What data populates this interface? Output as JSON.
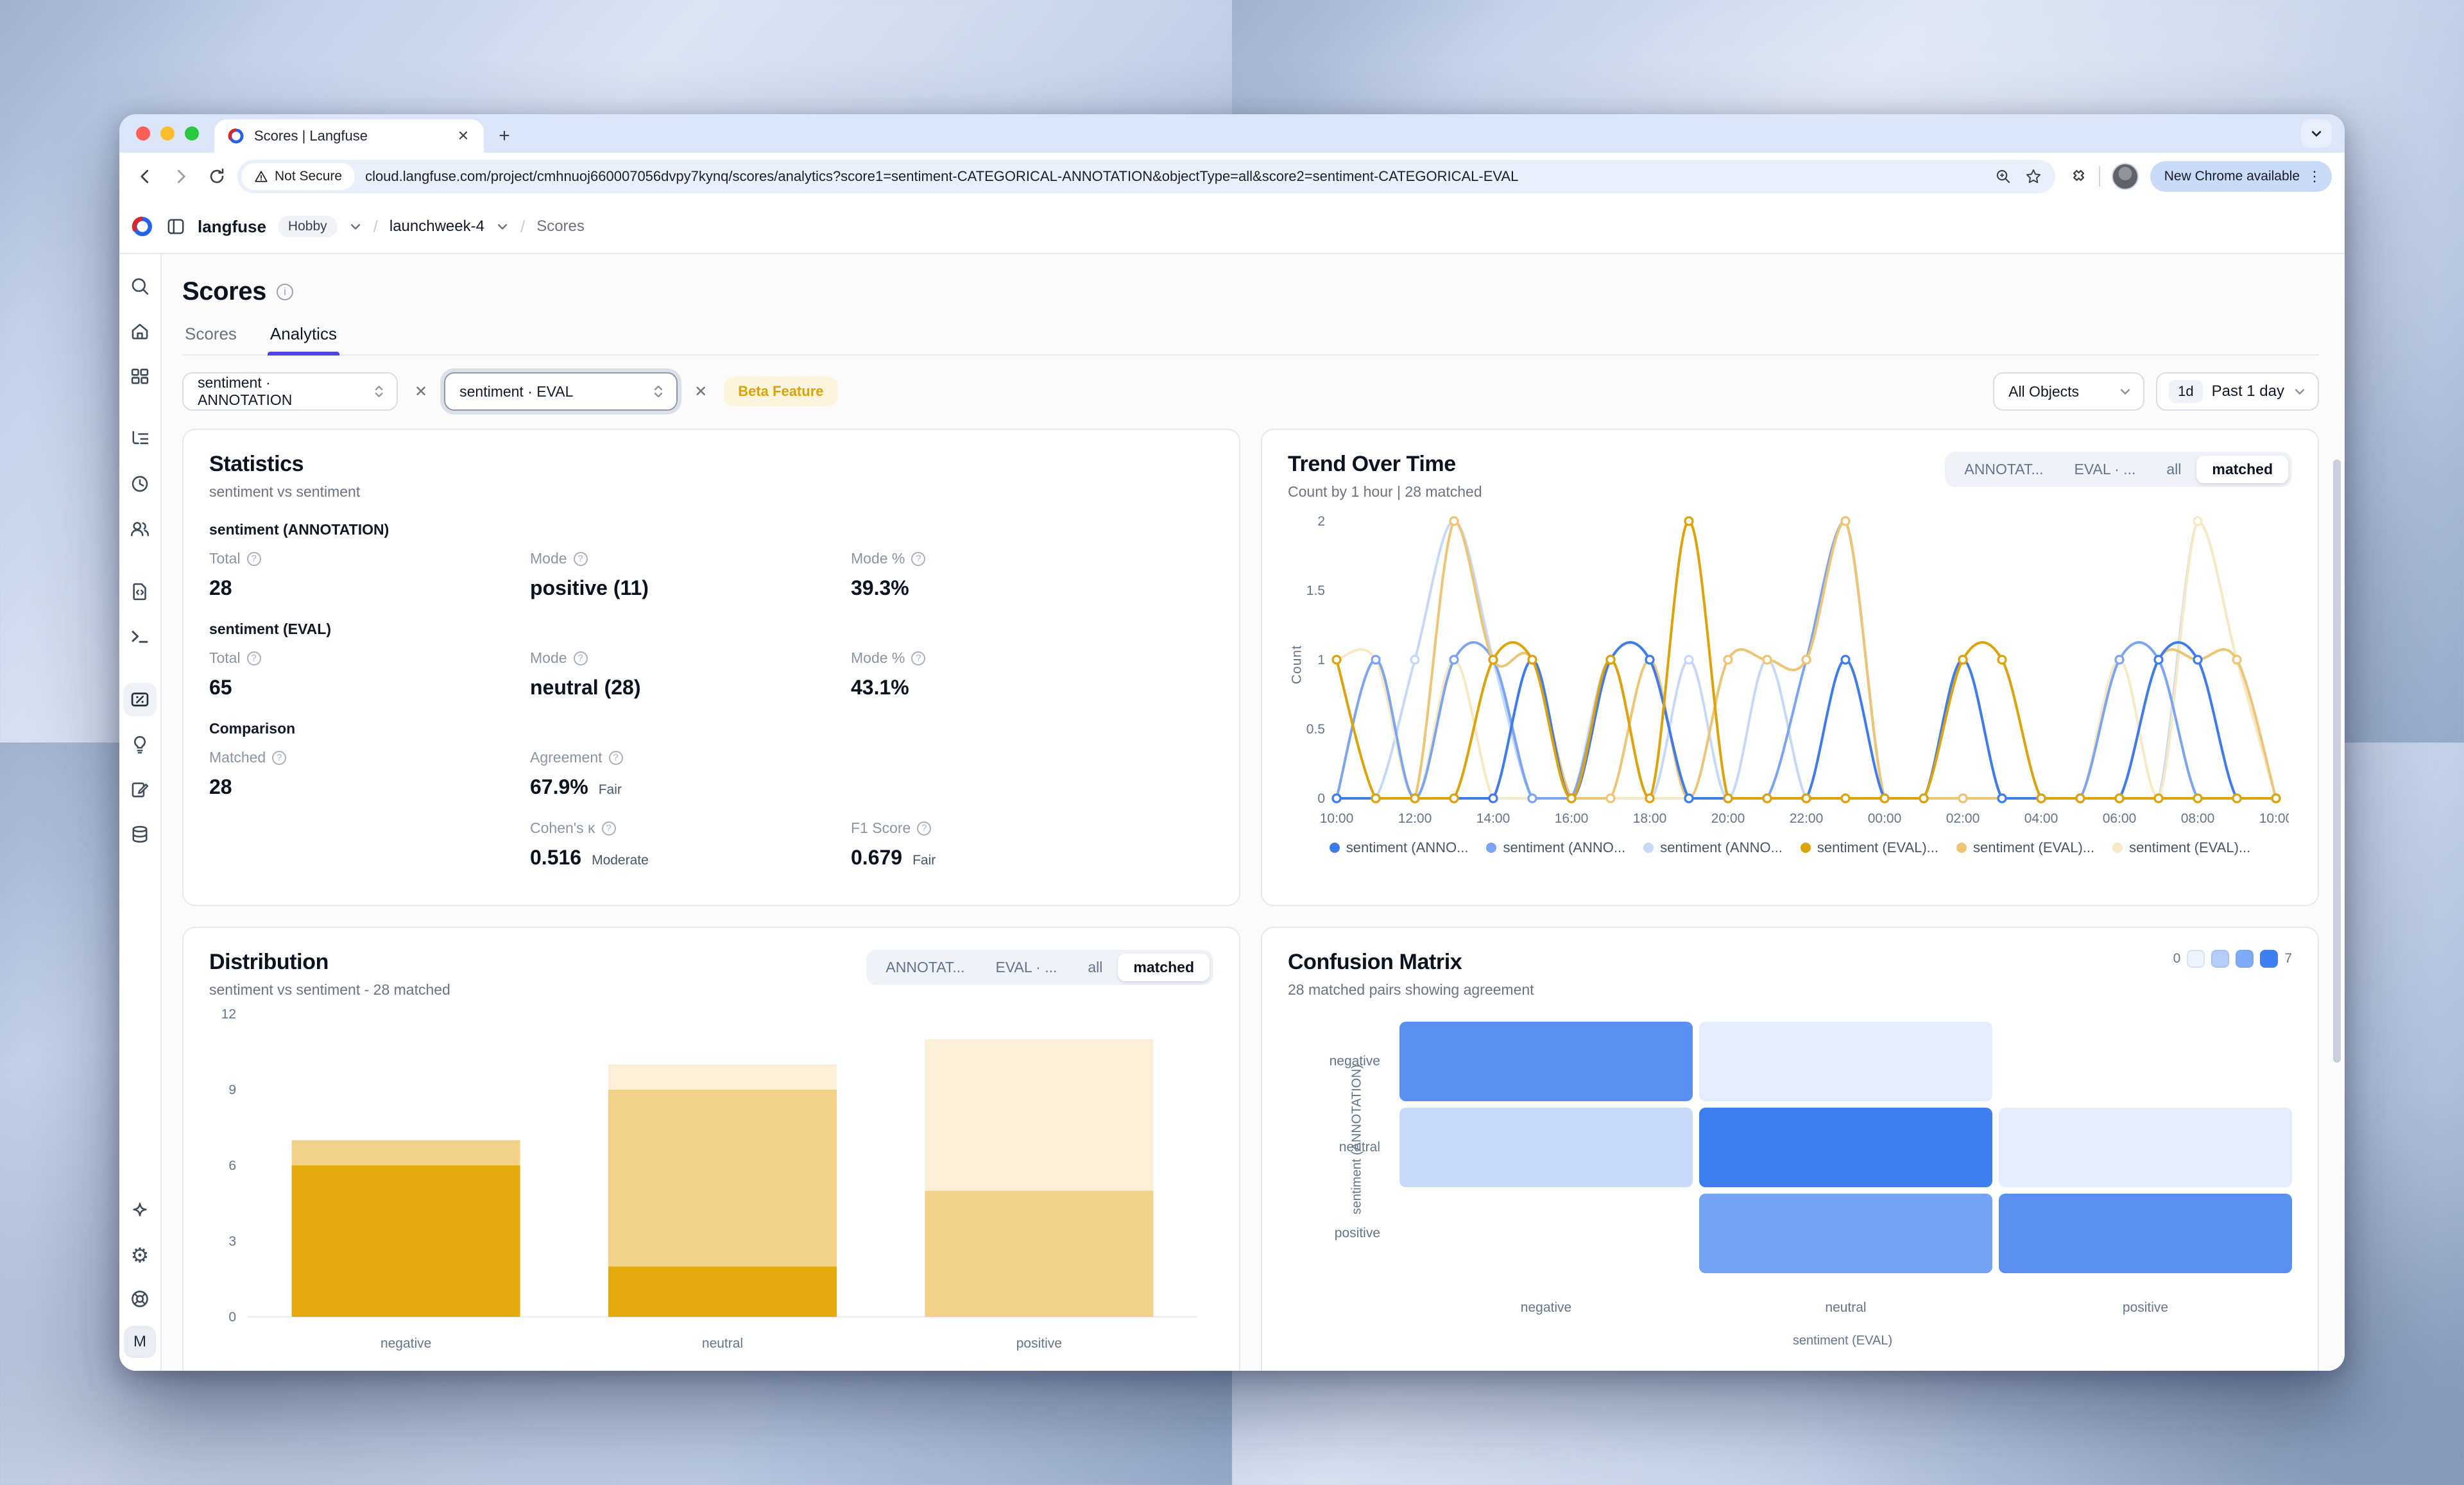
{
  "browser": {
    "tab_title": "Scores | Langfuse",
    "security_label": "Not Secure",
    "url": "cloud.langfuse.com/project/cmhnuoj660007056dvpy7kynq/scores/analytics?score1=sentiment-CATEGORICAL-ANNOTATION&objectType=all&score2=sentiment-CATEGORICAL-EVAL",
    "update_pill": "New Chrome available"
  },
  "app_header": {
    "brand": "langfuse",
    "plan": "Hobby",
    "project": "launchweek-4",
    "section": "Scores"
  },
  "sidebar": {
    "avatar": "M"
  },
  "page": {
    "title": "Scores",
    "tabs": [
      {
        "label": "Scores"
      },
      {
        "label": "Analytics"
      }
    ],
    "active_tab": "Analytics"
  },
  "filters": {
    "score1": "sentiment · ANNOTATION",
    "score2": "sentiment · EVAL",
    "beta": "Beta Feature",
    "objects": "All Objects",
    "range_badge": "1d",
    "range_label": "Past 1 day"
  },
  "statistics": {
    "title": "Statistics",
    "subtitle": "sentiment vs sentiment",
    "annotation": {
      "section": "sentiment (ANNOTATION)",
      "total_label": "Total",
      "total": "28",
      "mode_label": "Mode",
      "mode": "positive (11)",
      "mode_pct_label": "Mode %",
      "mode_pct": "39.3%"
    },
    "eval": {
      "section": "sentiment (EVAL)",
      "total_label": "Total",
      "total": "65",
      "mode_label": "Mode",
      "mode": "neutral (28)",
      "mode_pct_label": "Mode %",
      "mode_pct": "43.1%"
    },
    "comparison": {
      "section": "Comparison",
      "matched_label": "Matched",
      "matched": "28",
      "agreement_label": "Agreement",
      "agreement": "67.9%",
      "agreement_q": "Fair",
      "kappa_label": "Cohen's κ",
      "kappa": "0.516",
      "kappa_q": "Moderate",
      "f1_label": "F1 Score",
      "f1": "0.679",
      "f1_q": "Fair"
    }
  },
  "trend": {
    "title": "Trend Over Time",
    "subtitle": "Count by 1 hour | 28 matched",
    "tabs": [
      "ANNOTAT...",
      "EVAL · ...",
      "all",
      "matched"
    ],
    "active_tab": "matched"
  },
  "distribution": {
    "title": "Distribution",
    "subtitle": "sentiment vs sentiment - 28 matched",
    "tabs": [
      "ANNOTAT...",
      "EVAL · ...",
      "all",
      "matched"
    ],
    "active_tab": "matched"
  },
  "confusion": {
    "title": "Confusion Matrix",
    "subtitle": "28 matched pairs showing agreement",
    "scale_min": "0",
    "scale_max": "7",
    "x_axis": "sentiment (EVAL)",
    "y_axis": "sentiment (ANNOTATION)"
  },
  "chart_data": [
    {
      "type": "line",
      "title": "Trend Over Time",
      "ylabel": "Count",
      "ylim": [
        0,
        2
      ],
      "yticks": [
        0,
        0.5,
        1,
        1.5,
        2
      ],
      "x": [
        "10:00",
        "11:00",
        "12:00",
        "13:00",
        "14:00",
        "15:00",
        "16:00",
        "17:00",
        "18:00",
        "19:00",
        "20:00",
        "21:00",
        "22:00",
        "23:00",
        "00:00",
        "01:00",
        "02:00",
        "03:00",
        "04:00",
        "05:00",
        "06:00",
        "07:00",
        "08:00",
        "09:00",
        "10:00"
      ],
      "series": [
        {
          "name": "sentiment (ANNO...",
          "color": "#3E7BEF",
          "z": 5,
          "values": [
            0,
            0,
            0,
            0,
            0,
            1,
            0,
            1,
            1,
            0,
            0,
            0,
            0,
            1,
            0,
            0,
            1,
            0,
            0,
            0,
            0,
            1,
            1,
            0,
            0
          ]
        },
        {
          "name": "sentiment (ANNO...",
          "color": "#7BA4F2",
          "z": 3,
          "values": [
            0,
            1,
            0,
            1,
            1,
            0,
            0,
            1,
            1,
            0,
            0,
            0,
            1,
            2,
            0,
            0,
            0,
            0,
            0,
            0,
            1,
            1,
            0,
            0,
            0
          ]
        },
        {
          "name": "sentiment (ANNO...",
          "color": "#C6D9F9",
          "z": 1,
          "values": [
            0,
            0,
            1,
            2,
            1,
            0,
            0,
            1,
            0,
            1,
            0,
            1,
            0,
            0,
            0,
            0,
            1,
            0,
            0,
            0,
            0,
            0,
            2,
            1,
            0
          ]
        },
        {
          "name": "sentiment (EVAL)...",
          "color": "#DFA30A",
          "z": 6,
          "values": [
            1,
            0,
            0,
            0,
            1,
            1,
            0,
            1,
            0,
            2,
            0,
            0,
            0,
            0,
            0,
            0,
            1,
            1,
            0,
            0,
            0,
            0,
            0,
            0,
            0
          ]
        },
        {
          "name": "sentiment (EVAL)...",
          "color": "#EDC575",
          "z": 4,
          "values": [
            0,
            0,
            0,
            2,
            1,
            1,
            0,
            0,
            1,
            0,
            1,
            1,
            1,
            2,
            0,
            0,
            0,
            0,
            0,
            0,
            0,
            1,
            1,
            1,
            0
          ]
        },
        {
          "name": "sentiment (EVAL)...",
          "color": "#F7E9C4",
          "z": 2,
          "values": [
            1,
            1,
            0,
            1,
            0,
            0,
            0,
            0,
            0,
            0,
            0,
            0,
            0,
            0,
            0,
            0,
            0,
            0,
            0,
            0,
            1,
            0,
            2,
            1,
            0
          ]
        }
      ],
      "legend_position": "bottom"
    },
    {
      "type": "bar",
      "stacked": true,
      "title": "Distribution",
      "categories": [
        "negative",
        "neutral",
        "positive"
      ],
      "series": [
        {
          "name": "negative",
          "color": "#E5AA0D",
          "values": [
            6,
            2,
            0
          ]
        },
        {
          "name": "neutral",
          "color": "#F2D189",
          "values": [
            1,
            7,
            5
          ]
        },
        {
          "name": "positive",
          "color": "#FAF0D8",
          "values": [
            0,
            1,
            6
          ]
        }
      ],
      "ylim": [
        0,
        12
      ],
      "yticks": [
        0,
        3,
        6,
        9,
        12
      ],
      "legend_position": "bottom"
    },
    {
      "type": "heatmap",
      "title": "Confusion Matrix",
      "rows": [
        "negative",
        "neutral",
        "positive"
      ],
      "cols": [
        "negative",
        "neutral",
        "positive"
      ],
      "values": [
        [
          6,
          1,
          0
        ],
        [
          2,
          7,
          1
        ],
        [
          0,
          5,
          6
        ]
      ],
      "min": 0,
      "max": 7,
      "color_low": "#FFFFFF",
      "color_high": "#3D7EF0",
      "xlabel": "sentiment (EVAL)",
      "ylabel": "sentiment (ANNOTATION)"
    }
  ]
}
